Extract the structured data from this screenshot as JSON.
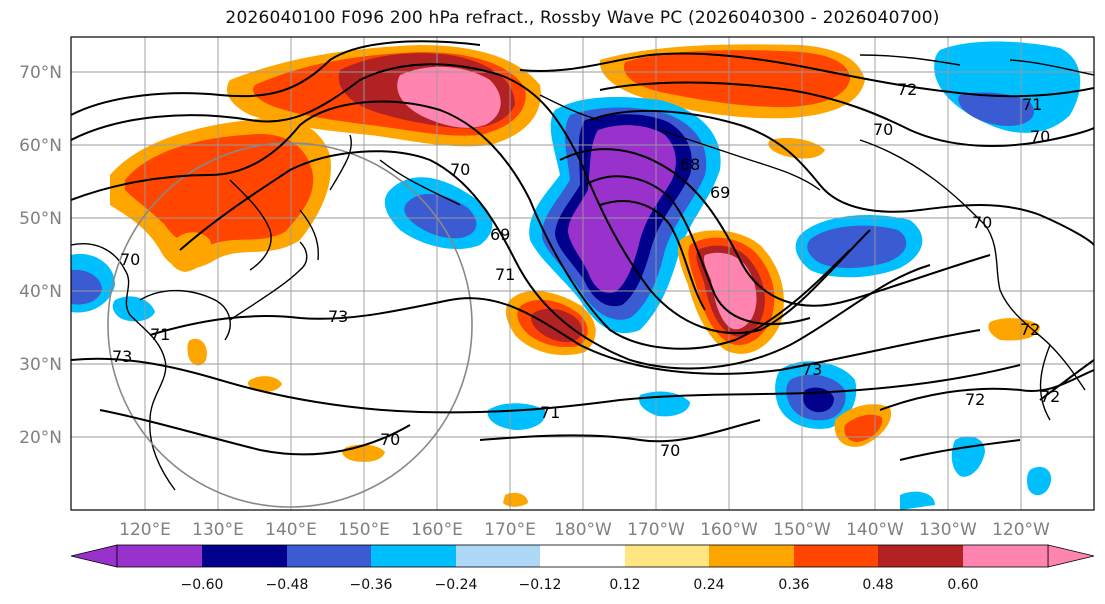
{
  "title": "2026040100 F096 200 hPa refract., Rossby Wave PC (2026040300 - 2026040700)",
  "map": {
    "lat_labels": [
      "70°N",
      "60°N",
      "50°N",
      "40°N",
      "30°N",
      "20°N"
    ],
    "lon_labels": [
      "120°E",
      "130°E",
      "140°E",
      "150°E",
      "160°E",
      "170°E",
      "180°W",
      "170°W",
      "160°W",
      "150°W",
      "140°W",
      "130°W",
      "120°W"
    ],
    "contour_labels": [
      "72",
      "71",
      "70",
      "70",
      "70",
      "70",
      "68",
      "69",
      "69",
      "71",
      "73",
      "73",
      "72",
      "72",
      "71",
      "70",
      "70",
      "73",
      "72",
      "70",
      "71"
    ]
  },
  "colorbar": {
    "colors": [
      "#9932cc",
      "#00008b",
      "#3a5bd1",
      "#00bfff",
      "#add8f7",
      "#ffffff",
      "#ffe680",
      "#ffa500",
      "#ff4500",
      "#b22222",
      "#ff85b0"
    ],
    "labels": [
      "−0.60",
      "−0.48",
      "−0.36",
      "−0.24",
      "−0.12",
      "0.12",
      "0.24",
      "0.36",
      "0.48",
      "0.60"
    ]
  }
}
